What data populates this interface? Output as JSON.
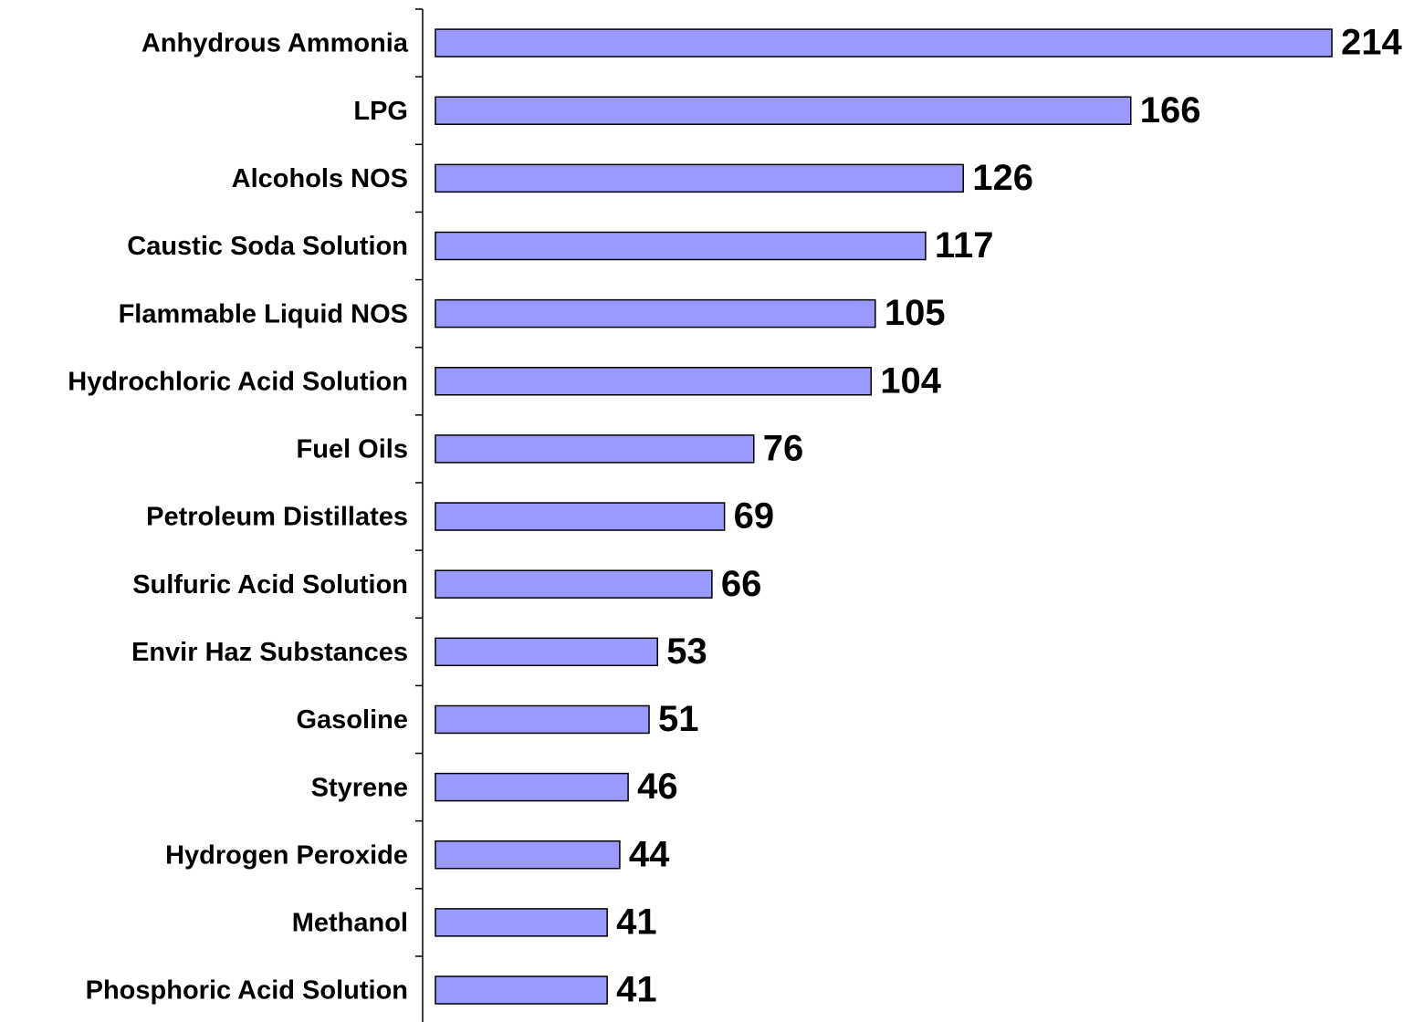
{
  "chart_data": {
    "type": "bar",
    "orientation": "horizontal",
    "color": "#9999ff",
    "categories": [
      "Anhydrous Ammonia",
      "LPG",
      "Alcohols NOS",
      "Caustic Soda Solution",
      "Flammable Liquid NOS",
      "Hydrochloric Acid Solution",
      "Fuel Oils",
      "Petroleum Distillates",
      "Sulfuric Acid Solution",
      "Envir Haz Substances",
      "Gasoline",
      "Styrene",
      "Hydrogen Peroxide",
      "Methanol",
      "Phosphoric Acid Solution"
    ],
    "values": [
      214,
      166,
      126,
      117,
      105,
      104,
      76,
      69,
      66,
      53,
      51,
      46,
      44,
      41,
      41
    ]
  }
}
